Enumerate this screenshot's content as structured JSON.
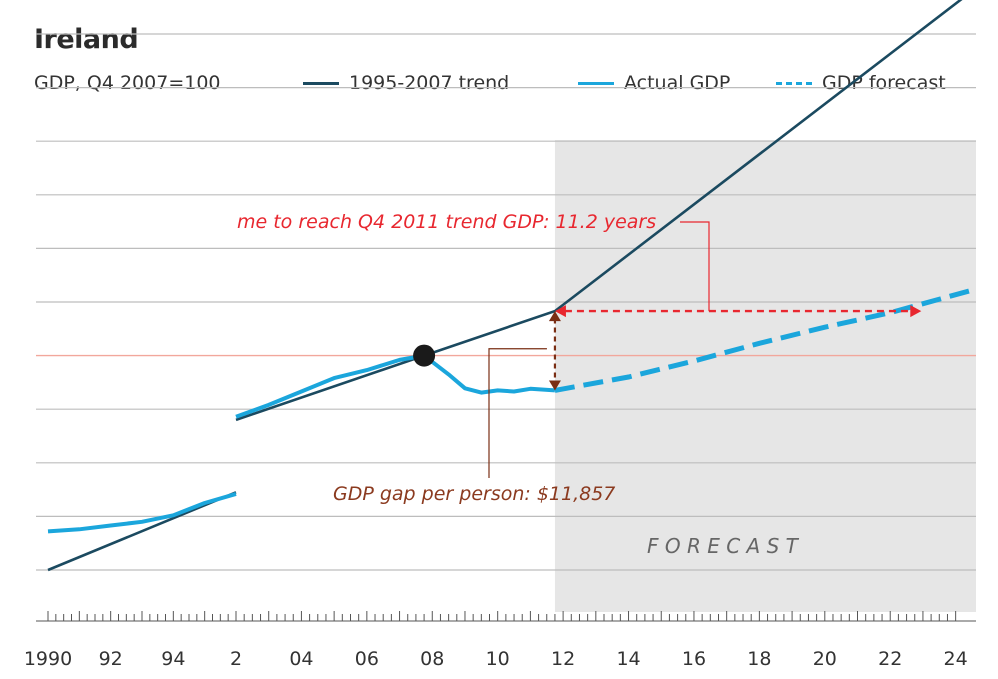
{
  "title": "Ireland",
  "subtitle": "GDP, Q4 2007=100",
  "legend": [
    {
      "label": "1995-2007 trend",
      "color": "#1b4a60",
      "style": "solid"
    },
    {
      "label": "Actual GDP",
      "color": "#1ba6dc",
      "style": "solid"
    },
    {
      "label": "GDP forecast",
      "color": "#1ba6dc",
      "style": "dashed"
    }
  ],
  "annotations": {
    "time_to_trend": "me to reach Q4 2011 trend GDP: 11.2 years",
    "gdp_gap": "GDP gap per person: $11,857",
    "forecast": "F O R E C A S T"
  },
  "colors": {
    "trend": "#1b4a60",
    "actual": "#1ba6dc",
    "forecast_band": "#e6e6e6",
    "reference_line": "#f2a79c",
    "arrow_red": "#e8272f",
    "arrow_brown": "#7a2e14",
    "gap_text": "#8b3a1f"
  },
  "chart_data": {
    "type": "line",
    "x_tick_labels": [
      "1990",
      "92",
      "94",
      "2",
      "04",
      "06",
      "08",
      "10",
      "12",
      "14",
      "16",
      "18",
      "20",
      "22",
      "24"
    ],
    "segments": [
      {
        "x_range": [
          1990,
          1996
        ],
        "y_range": [
          50,
          70
        ]
      },
      {
        "x_range": [
          2002,
          2024.5
        ],
        "y_range": [
          70,
          170
        ]
      }
    ],
    "gridlines_y": [
      60,
      70,
      80,
      90,
      100,
      110,
      120,
      130,
      140,
      150,
      160
    ],
    "reference_y": 100,
    "forecast_start": 2011.75,
    "series": [
      {
        "name": "1995-2007 trend",
        "style": "solid",
        "points": [
          [
            1990,
            60
          ],
          [
            1996,
            74.5
          ],
          [
            2002,
            88
          ],
          [
            2007.75,
            100
          ],
          [
            2011.75,
            108.3
          ],
          [
            2024.5,
            168
          ]
        ]
      },
      {
        "name": "Actual GDP",
        "style": "solid",
        "points": [
          [
            1990,
            67.2
          ],
          [
            1991,
            67.6
          ],
          [
            1992,
            68.3
          ],
          [
            1993,
            69.0
          ],
          [
            1994,
            70.2
          ],
          [
            1995,
            72.5
          ],
          [
            1996,
            74.2
          ],
          [
            2002,
            88.6
          ],
          [
            2003,
            90.8
          ],
          [
            2004,
            93.3
          ],
          [
            2005,
            95.8
          ],
          [
            2006,
            97.3
          ],
          [
            2007,
            99.2
          ],
          [
            2007.75,
            100
          ],
          [
            2008.5,
            96.5
          ],
          [
            2009,
            93.9
          ],
          [
            2009.5,
            93.1
          ],
          [
            2010,
            93.5
          ],
          [
            2010.5,
            93.3
          ],
          [
            2011,
            93.8
          ],
          [
            2011.75,
            93.5
          ]
        ]
      },
      {
        "name": "GDP forecast",
        "style": "dashed",
        "points": [
          [
            2011.75,
            93.5
          ],
          [
            2014,
            96.0
          ],
          [
            2016,
            99.0
          ],
          [
            2018,
            102.3
          ],
          [
            2020,
            105.3
          ],
          [
            2022,
            108.0
          ],
          [
            2024.5,
            112.2
          ]
        ]
      }
    ],
    "marker": {
      "x": 2007.75,
      "y": 100
    },
    "gap_arrow": {
      "x": 2011.75,
      "from": 93.5,
      "to": 108.3
    },
    "time_arrow": {
      "y": 108.3,
      "from": 2011.75,
      "to": 2022.95
    }
  }
}
